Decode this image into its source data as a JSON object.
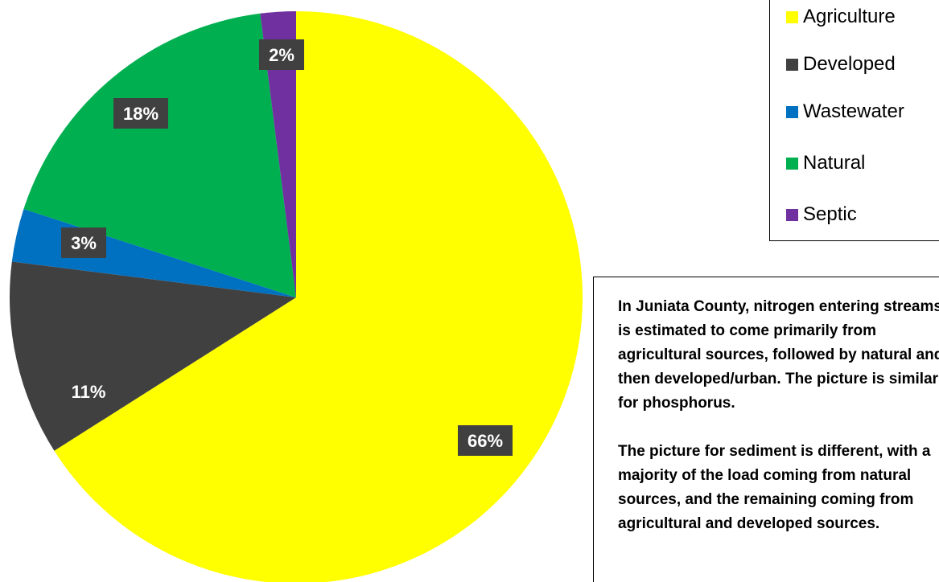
{
  "chart_data": {
    "type": "pie",
    "title": "",
    "start": "top, clockwise",
    "slices": [
      {
        "name": "Agriculture",
        "value": 66,
        "label": "66%",
        "color": "#FFFF00"
      },
      {
        "name": "Developed",
        "value": 11,
        "label": "11%",
        "color": "#404040"
      },
      {
        "name": "Wastewater",
        "value": 3,
        "label": "3%",
        "color": "#0070C0"
      },
      {
        "name": "Natural",
        "value": 18,
        "label": "18%",
        "color": "#00B050"
      },
      {
        "name": "Septic",
        "value": 2,
        "label": "2%",
        "color": "#7030A0"
      }
    ],
    "legend_position": "top-right"
  },
  "legend": {
    "items": [
      {
        "label": "Agriculture",
        "color": "#FFFF00"
      },
      {
        "label": "Developed",
        "color": "#404040"
      },
      {
        "label": "Wastewater",
        "color": "#0070C0"
      },
      {
        "label": "Natural",
        "color": "#00B050"
      },
      {
        "label": "Septic",
        "color": "#7030A0"
      }
    ]
  },
  "note": {
    "paragraph1": "In Juniata County, nitrogen entering streams is estimated to come primarily from agricultural sources, followed by natural and then developed/urban. The picture is similar for phosphorus.",
    "paragraph2": "The picture for sediment is different, with a majority of the load coming from natural sources, and the remaining coming from agricultural and developed sources."
  }
}
